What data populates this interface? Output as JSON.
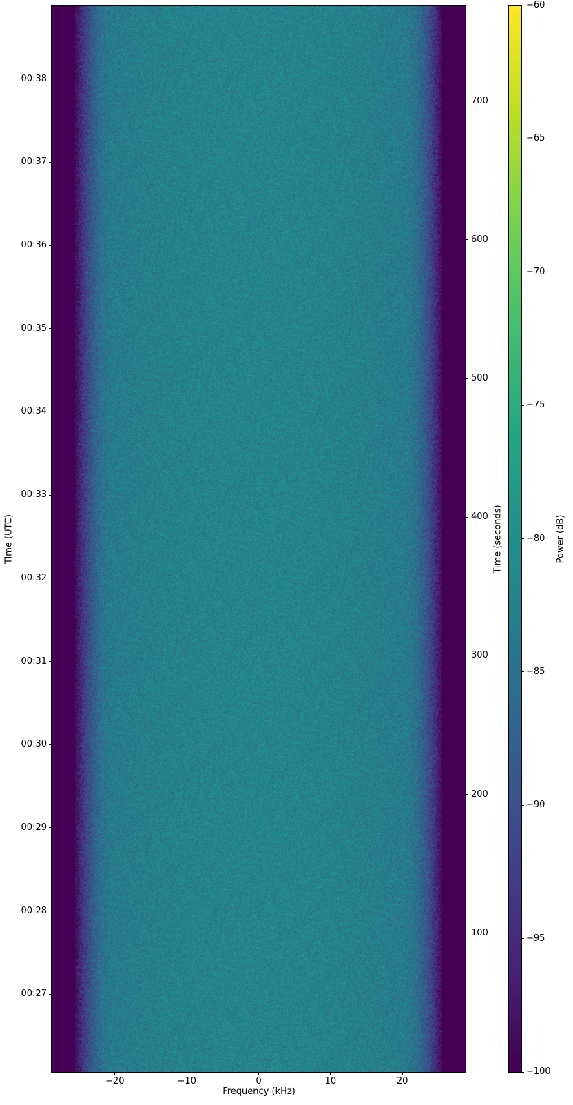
{
  "chart_data": {
    "type": "heatmap",
    "xlabel": "Frequency (kHz)",
    "ylabel_left": "Time (UTC)",
    "ylabel_right": "Time (seconds)",
    "colorbar_label": "Power (dB)",
    "colormap": "viridis",
    "xlim": [
      -28.8,
      28.8
    ],
    "x_ticks": [
      -20,
      -10,
      0,
      10,
      20
    ],
    "x_tick_labels": [
      "−20",
      "−10",
      "0",
      "10",
      "20"
    ],
    "ylim_seconds": [
      0,
      769
    ],
    "y_right_ticks": [
      100,
      200,
      300,
      400,
      500,
      600,
      700
    ],
    "y_left_ticks_seconds": [
      56,
      116,
      176,
      236,
      296,
      356,
      416,
      476,
      536,
      596,
      656,
      716
    ],
    "y_left_tick_labels": [
      "00:27",
      "00:28",
      "00:29",
      "00:30",
      "00:31",
      "00:32",
      "00:33",
      "00:34",
      "00:35",
      "00:36",
      "00:37",
      "00:38"
    ],
    "colorbar_range": [
      -100,
      -60
    ],
    "colorbar_ticks": [
      -100,
      -95,
      -90,
      -85,
      -80,
      -75,
      -70,
      -65,
      -60
    ],
    "colorbar_tick_labels": [
      "−100",
      "−95",
      "−90",
      "−85",
      "−80",
      "−75",
      "−70",
      "−65",
      "−60"
    ],
    "signal": {
      "passband_khz": [
        -20,
        20
      ],
      "passband_power_db": -82,
      "rolloff_edge_khz": 25.5,
      "out_of_band_power_db": -100
    }
  }
}
